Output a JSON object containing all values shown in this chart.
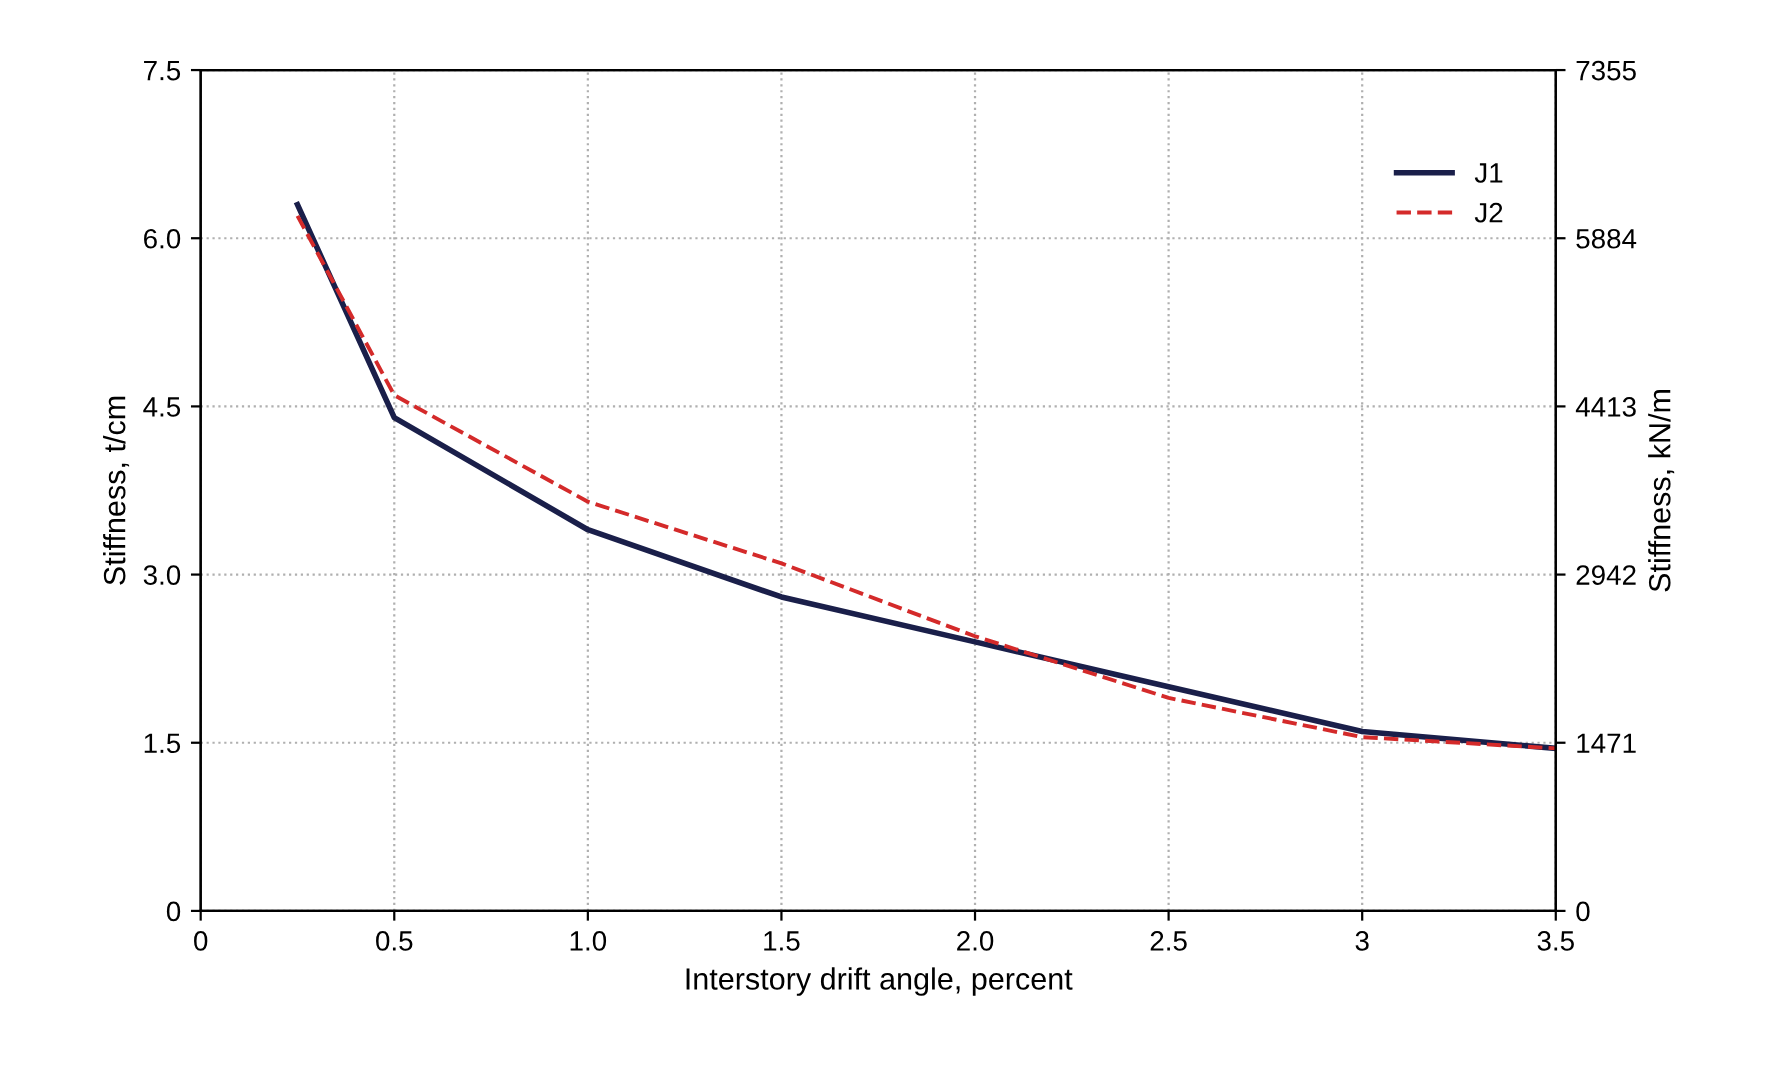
{
  "chart_data": {
    "type": "line",
    "xlabel": "Interstory drift angle, percent",
    "ylabel": "Stiffness, t/cm",
    "y2label": "Stiffness, kN/m",
    "x": [
      0.25,
      0.5,
      1.0,
      1.5,
      2.0,
      2.5,
      3.0,
      3.5
    ],
    "series": [
      {
        "name": "J1",
        "color": "#1a1f4a",
        "line_style": "solid",
        "values": [
          6.3,
          4.4,
          3.4,
          2.8,
          2.4,
          2.0,
          1.6,
          1.45
        ]
      },
      {
        "name": "J2",
        "color": "#d42a2a",
        "line_style": "dashed",
        "values": [
          6.2,
          4.6,
          3.65,
          3.1,
          2.45,
          1.9,
          1.55,
          1.45
        ]
      }
    ],
    "xlim": [
      0,
      3.5
    ],
    "xticks": [
      0,
      0.5,
      {
        "value": 1.0,
        "label": "1.0"
      },
      1.5,
      {
        "value": 2.0,
        "label": "2.0"
      },
      2.5,
      3,
      3.5
    ],
    "ylim": [
      0,
      7.5
    ],
    "yticks": [
      0,
      1.5,
      {
        "value": 3.0,
        "label": "3.0"
      },
      4.5,
      {
        "value": 6.0,
        "label": "6.0"
      },
      7.5
    ],
    "y2lim": [
      0,
      7355
    ],
    "y2ticks": [
      0,
      1471,
      2942,
      4413,
      5884,
      7355
    ],
    "grid": true,
    "legend": "top right"
  }
}
